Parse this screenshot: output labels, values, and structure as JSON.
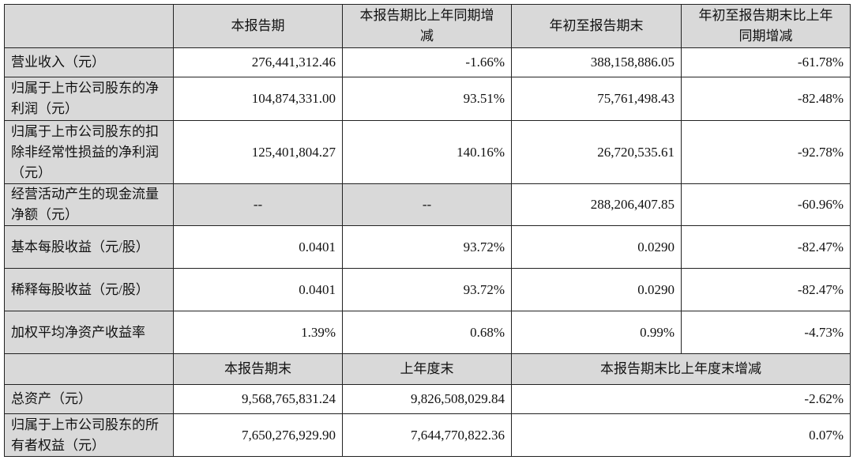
{
  "header": [
    "",
    "本报告期",
    "本报告期比上年同期增减",
    "年初至报告期末",
    "年初至报告期末比上年同期增减"
  ],
  "rows": [
    {
      "label": "营业收入（元）",
      "values": [
        "276,441,312.46",
        "-1.66%",
        "388,158,886.05",
        "-61.78%"
      ]
    },
    {
      "label": "归属于上市公司股东的净利润（元）",
      "values": [
        "104,874,331.00",
        "93.51%",
        "75,761,498.43",
        "-82.48%"
      ]
    },
    {
      "label": "归属于上市公司股东的扣除非经常性损益的净利润（元）",
      "values": [
        "125,401,804.27",
        "140.16%",
        "26,720,535.61",
        "-92.78%"
      ]
    },
    {
      "label": "经营活动产生的现金流量净额（元）",
      "values": [
        "--",
        "--",
        "288,206,407.85",
        "-60.96%"
      ]
    },
    {
      "label": "基本每股收益（元/股）",
      "values": [
        "0.0401",
        "93.72%",
        "0.0290",
        "-82.47%"
      ]
    },
    {
      "label": "稀释每股收益（元/股）",
      "values": [
        "0.0401",
        "93.72%",
        "0.0290",
        "-82.47%"
      ]
    },
    {
      "label": "加权平均净资产收益率",
      "values": [
        "1.39%",
        "0.68%",
        "0.99%",
        "-4.73%"
      ]
    }
  ],
  "header2": [
    "",
    "本报告期末",
    "上年度末",
    "本报告期末比上年度末增减"
  ],
  "rows2": [
    {
      "label": "总资产（元）",
      "values": [
        "9,568,765,831.24",
        "9,826,508,029.84",
        "-2.62%"
      ]
    },
    {
      "label": "归属于上市公司股东的所有者权益（元）",
      "values": [
        "7,650,276,929.90",
        "7,644,770,822.36",
        "0.07%"
      ]
    }
  ]
}
